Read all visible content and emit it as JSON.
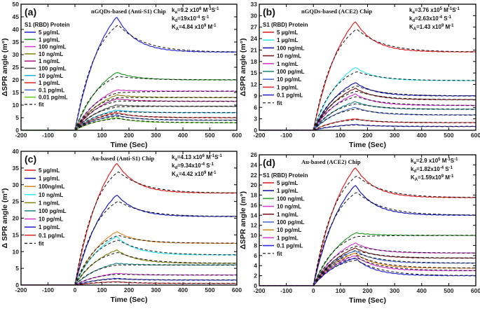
{
  "chart_data": [
    {
      "type": "line",
      "label": "(a)",
      "title": "nGQDs-based (Anti-S1) Chip",
      "xlabel": "Time (Sec)",
      "ylabel": "ΔSPR angle (m°)",
      "xlim": [
        -200,
        600
      ],
      "ylim": [
        0,
        50
      ],
      "xticks": [
        -200,
        -100,
        0,
        100,
        200,
        300,
        400,
        500,
        600
      ],
      "yticks": [
        0,
        5,
        10,
        15,
        20,
        25,
        30,
        35,
        40,
        45,
        50
      ],
      "legend_title": "S1 (RBD) Protein",
      "fit_label": "fit",
      "kinetics": [
        "ka=9.2 x10^6 M^-1S^-1",
        "kd=19x10^-4 S^-1",
        "KA=4.84 x10^9 M^-1"
      ],
      "kin_text": [
        {
          "sym": "k",
          "sub": "a",
          "val": "=9.2 x10",
          "exp": "6",
          "unit": " M",
          "uexp": "-1",
          "rest": "S",
          "rexp": "-1"
        },
        {
          "sym": "k",
          "sub": "d",
          "val": "=19x10",
          "exp": "-4",
          "unit": " S",
          "uexp": "-1",
          "rest": "",
          "rexp": ""
        },
        {
          "sym": "K",
          "sub": "A",
          "val": "=4.84 x10",
          "exp": "9",
          "unit": " M",
          "uexp": "-1",
          "rest": "",
          "rexp": ""
        }
      ],
      "series": [
        {
          "name": "5 µg/mL",
          "color": "#2a2ad8",
          "peak": 45,
          "end": 31
        },
        {
          "name": "1 µg/mL",
          "color": "#2e9a2e",
          "peak": 23,
          "end": 20
        },
        {
          "name": "100 ng/mL",
          "color": "#d63fd6",
          "peak": 16,
          "end": 15.5
        },
        {
          "name": "10 ng/mL",
          "color": "#8a8a1e",
          "peak": 14,
          "end": 13
        },
        {
          "name": "1 ng/mL",
          "color": "#b0268a",
          "peak": 12.5,
          "end": 11.5
        },
        {
          "name": "100 pg/mL",
          "color": "#505050",
          "peak": 10,
          "end": 9.5
        },
        {
          "name": "10 pg/mL",
          "color": "#29b5e8",
          "peak": 8,
          "end": 7
        },
        {
          "name": "1 pg/mL",
          "color": "#e23030",
          "peak": 7,
          "end": 5
        },
        {
          "name": "0.1 pg/mL",
          "color": "#4e6fd0",
          "peak": 6,
          "end": 4
        },
        {
          "name": "0.01 pg/mL",
          "color": "#66cc22",
          "peak": 5,
          "end": 3
        }
      ]
    },
    {
      "type": "line",
      "label": "(b)",
      "title": "nGQDs-based (ACE2) Chip",
      "xlabel": "Time (Sec)",
      "ylabel": "ΔSPR angle (m°)",
      "xlim": [
        -200,
        600
      ],
      "ylim": [
        0,
        33
      ],
      "xticks": [
        -200,
        -100,
        0,
        100,
        200,
        300,
        400,
        500,
        600
      ],
      "yticks": [
        0,
        3,
        6,
        9,
        12,
        15,
        18,
        21,
        24,
        27,
        30,
        33
      ],
      "legend_title": "S1 (RBD) Protein",
      "fit_label": "fit",
      "kinetics": [
        "ka=3.76 x10^5 M^-1S^-1",
        "kd=2.63x10^-4 S^-1",
        "KA=1.43 x10^9 M^-1"
      ],
      "kin_text": [
        {
          "sym": "k",
          "sub": "a",
          "val": "=3.76 x10",
          "exp": "5",
          "unit": " M",
          "uexp": "-1",
          "rest": "S",
          "rexp": "-1"
        },
        {
          "sym": "k",
          "sub": "d",
          "val": "=2.63x10",
          "exp": "-4",
          "unit": " S",
          "uexp": "-1",
          "rest": "",
          "rexp": ""
        },
        {
          "sym": "K",
          "sub": "A",
          "val": "=1.43 x10",
          "exp": "9",
          "unit": " M",
          "uexp": "-1",
          "rest": "",
          "rexp": ""
        }
      ],
      "series": [
        {
          "name": "5 µg/mL",
          "color": "#e02424",
          "peak": 28.5,
          "end": 20.5
        },
        {
          "name": "1 µg/mL",
          "color": "#3ee6f0",
          "peak": 16.5,
          "end": 13
        },
        {
          "name": "100 ng/mL",
          "color": "#1a1ab8",
          "peak": 12.5,
          "end": 9
        },
        {
          "name": "10 ng/mL",
          "color": "#7a1f1f",
          "peak": 11,
          "end": 8
        },
        {
          "name": "1 ng/mL",
          "color": "#d63fd6",
          "peak": 9.5,
          "end": 6.5
        },
        {
          "name": "100 pg/mL",
          "color": "#2a8a8a",
          "peak": 7.5,
          "end": 5.5
        },
        {
          "name": "10 pg/mL",
          "color": "#4e6fd0",
          "peak": 6,
          "end": 4
        },
        {
          "name": "1 pg/mL",
          "color": "#e23030",
          "peak": 3,
          "end": 2
        },
        {
          "name": "0.1 pg/mL",
          "color": "#2a2ad8",
          "peak": 1.5,
          "end": 1
        }
      ]
    },
    {
      "type": "line",
      "label": "(c)",
      "title": "Au-based (Anti-S1) Chip",
      "xlabel": "Time (Sec)",
      "ylabel": "Δ SPR angle (m°)",
      "xlim": [
        -200,
        600
      ],
      "ylim": [
        0,
        40
      ],
      "xticks": [
        -200,
        -100,
        0,
        100,
        200,
        300,
        400,
        500,
        600
      ],
      "yticks": [
        0,
        5,
        10,
        15,
        20,
        25,
        30,
        35,
        40
      ],
      "legend_title": "",
      "fit_label": "fit",
      "kinetics": [
        "ka=4.13 x10^6 M^-1S^-1",
        "kd=9.34x10^-4 S^-1",
        "KA=4.42 x10^9 M^-1"
      ],
      "kin_text": [
        {
          "sym": "k",
          "sub": "a",
          "val": "=4.13 x10",
          "exp": "6",
          "unit": " M",
          "uexp": "-1",
          "rest": "S",
          "rexp": "-1"
        },
        {
          "sym": "k",
          "sub": "d",
          "val": "=9.34x10",
          "exp": "-4",
          "unit": " S",
          "uexp": "-1",
          "rest": "",
          "rexp": ""
        },
        {
          "sym": "K",
          "sub": "A",
          "val": "=4.42 x10",
          "exp": "9",
          "unit": " M",
          "uexp": "-1",
          "rest": "",
          "rexp": ""
        }
      ],
      "series": [
        {
          "name": "5 µg/mL",
          "color": "#e02424",
          "peak": 36.5,
          "end": 27.5
        },
        {
          "name": "1 µg/mL",
          "color": "#1a1ab8",
          "peak": 27,
          "end": 20.5
        },
        {
          "name": "100ng/mL",
          "color": "#e08a2a",
          "peak": 16,
          "end": 12.5
        },
        {
          "name": "10 ng/mL",
          "color": "#3ee6f0",
          "peak": 14.5,
          "end": 9
        },
        {
          "name": "1 ng/mL",
          "color": "#8a8a1e",
          "peak": 10.5,
          "end": 6.5
        },
        {
          "name": "100 pg/mL",
          "color": "#2a8a8a",
          "peak": 6.5,
          "end": 6
        },
        {
          "name": "10 pg/mL",
          "color": "#d63fd6",
          "peak": 3.5,
          "end": 3
        },
        {
          "name": "1 pg/mL",
          "color": "#2a2ad8",
          "peak": 2,
          "end": 1.5
        },
        {
          "name": "0.1 pg/mL",
          "color": "#e23030",
          "peak": 1,
          "end": 0.5
        }
      ]
    },
    {
      "type": "line",
      "label": "(d)",
      "title": "Au-based (ACE2) Chip",
      "xlabel": "Time (Sec)",
      "ylabel": "ΔSPR angle (m°)",
      "xlim": [
        -200,
        600
      ],
      "ylim": [
        0,
        26
      ],
      "xticks": [
        -200,
        -100,
        0,
        100,
        200,
        300,
        400,
        500,
        600
      ],
      "yticks": [
        0,
        2,
        4,
        6,
        8,
        10,
        12,
        14,
        16,
        18,
        20,
        22,
        24,
        26
      ],
      "legend_title": "S1 (RBD) Protein",
      "fit_label": "fit",
      "kinetics": [
        "ka=2.9 x10^5 M^-1S^-1",
        "kd=1.82x10^-4 S^-1",
        "KA=1.59x10^9 M^-1"
      ],
      "kin_text": [
        {
          "sym": "k",
          "sub": "a",
          "val": "=2.9 x10",
          "exp": "5",
          "unit": " M",
          "uexp": "-1",
          "rest": "S",
          "rexp": "-1"
        },
        {
          "sym": "k",
          "sub": "d",
          "val": "=1.82x10",
          "exp": "-4",
          "unit": " S",
          "uexp": "-1",
          "rest": "",
          "rexp": ""
        },
        {
          "sym": "K",
          "sub": "A",
          "val": "=1.59x10",
          "exp": "9",
          "unit": " M",
          "uexp": "-1",
          "rest": "",
          "rexp": ""
        }
      ],
      "series": [
        {
          "name": "5 µg/mL",
          "color": "#e02424",
          "peak": 23.5,
          "end": 17.5
        },
        {
          "name": "1 µg/mL",
          "color": "#1a1ab8",
          "peak": 20,
          "end": 14
        },
        {
          "name": "100 ng/mL",
          "color": "#2e9a2e",
          "peak": 10.5,
          "end": 10
        },
        {
          "name": "10 ng/mL",
          "color": "#d63fd6",
          "peak": 8.5,
          "end": 6.5
        },
        {
          "name": "1 ng/mL",
          "color": "#7a1f1f",
          "peak": 7.5,
          "end": 5.5
        },
        {
          "name": "100 pg/mL",
          "color": "#4e6fd0",
          "peak": 7,
          "end": 4.5
        },
        {
          "name": "10 pg/mL",
          "color": "#e08a2a",
          "peak": 6.5,
          "end": 3.5
        },
        {
          "name": "1 pg/mL",
          "color": "#d63fd6",
          "peak": 6,
          "end": 3
        },
        {
          "name": "0.1 pg/mL",
          "color": "#2a2ad8",
          "peak": 5.5,
          "end": 2
        }
      ]
    }
  ]
}
